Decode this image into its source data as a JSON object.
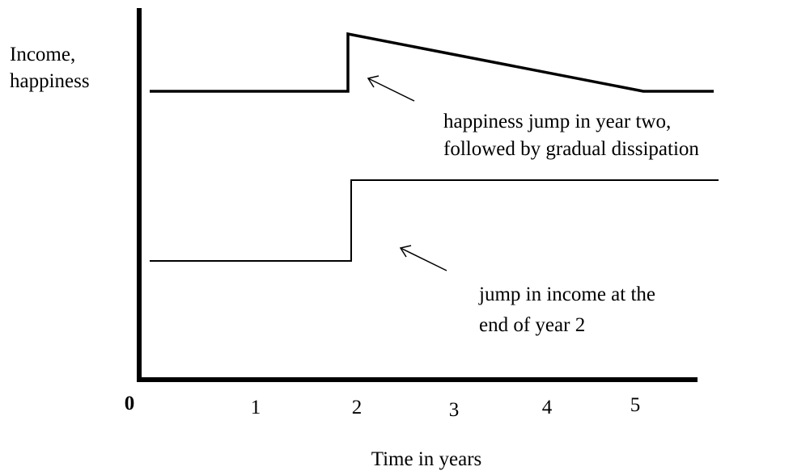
{
  "y_label": [
    "Income,",
    "happiness"
  ],
  "x_label": "Time in years",
  "x_tick_labels": [
    "0",
    "1",
    "2",
    "3",
    "4",
    "5"
  ],
  "annotations": [
    {
      "lines": [
        "happiness jump in year two,",
        "followed by gradual dissipation"
      ]
    },
    {
      "lines": [
        "jump in income at the",
        "end of year 2"
      ]
    }
  ]
}
